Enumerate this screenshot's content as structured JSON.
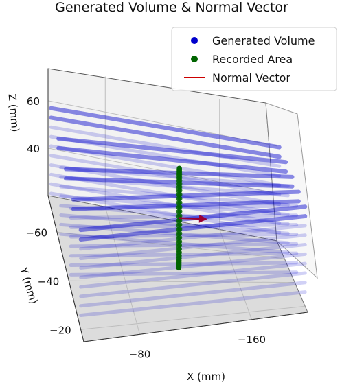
{
  "chart_data": {
    "type": "scatter",
    "projection": "3d",
    "title": "Generated Volume & Normal Vector",
    "xlabel": "X (mm)",
    "ylabel": "Y (mm)",
    "zlabel": "Z (mm)",
    "xticks": [
      -80,
      -160
    ],
    "yticks": [
      -60,
      -40,
      -20
    ],
    "zticks": [
      60,
      40
    ],
    "xlim": [
      -40,
      -200
    ],
    "ylim": [
      -75,
      -15
    ],
    "zlim": [
      20,
      75
    ],
    "grid": true,
    "legend_position": "top-right",
    "legend": [
      "Generated Volume",
      "Recorded Area",
      "Normal Vector"
    ],
    "series": [
      {
        "name": "Generated Volume",
        "kind": "scatter",
        "color": "#0000cc",
        "x": [
          -40,
          -200
        ],
        "y": [
          -70,
          -20
        ],
        "z_slices": [
          62,
          58,
          54,
          50,
          46,
          42,
          38,
          34,
          30,
          26
        ],
        "note": "dense point cloud of parallel sweep lines"
      },
      {
        "name": "Recorded Area",
        "kind": "scatter",
        "color": "#006400",
        "loop_center": {
          "x": -120,
          "y": -45,
          "z": 43
        },
        "loop_extent": {
          "y": 25,
          "z": 20
        }
      },
      {
        "name": "Normal Vector",
        "kind": "line",
        "color": "#cc0000",
        "start": {
          "x": -120,
          "y": -45,
          "z": 43
        },
        "end": {
          "x": -140,
          "y": -45,
          "z": 43
        }
      }
    ]
  }
}
